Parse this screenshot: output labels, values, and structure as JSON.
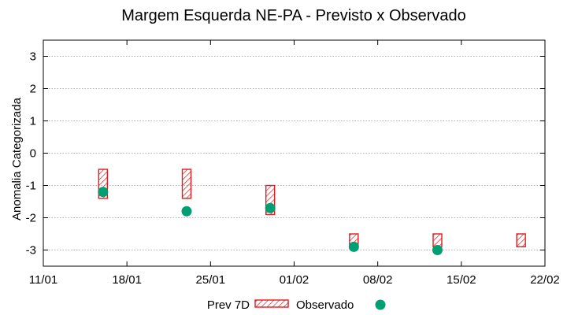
{
  "chart_data": {
    "type": "scatter",
    "title": "Margem Esquerda NE-PA - Previsto x Observado",
    "xlabel": "",
    "ylabel": "Anomalia Categorizada",
    "xlim": [
      "2021-01-11",
      "2021-02-22"
    ],
    "ylim": [
      -3.5,
      3.5
    ],
    "x_ticks": [
      "11/01",
      "18/01",
      "25/01",
      "01/02",
      "08/02",
      "15/02",
      "22/02"
    ],
    "y_ticks": [
      "3",
      "2",
      "1",
      "0",
      "-1",
      "-2",
      "-3"
    ],
    "y_tick_values": [
      3,
      2,
      1,
      0,
      -1,
      -2,
      -3
    ],
    "grid": true,
    "legend_position": "bottom",
    "colors": {
      "forecast": "#e41a1c",
      "observed": "#009e73",
      "grid": "#999999"
    },
    "series": [
      {
        "name": "Prev 7D",
        "kind": "range-box",
        "points": [
          {
            "x": "2021-01-16",
            "low": -1.4,
            "high": -0.5
          },
          {
            "x": "2021-01-23",
            "low": -1.4,
            "high": -0.5
          },
          {
            "x": "2021-01-30",
            "low": -1.9,
            "high": -1.0
          },
          {
            "x": "2021-02-06",
            "low": -2.9,
            "high": -2.5
          },
          {
            "x": "2021-02-13",
            "low": -2.9,
            "high": -2.5
          },
          {
            "x": "2021-02-20",
            "low": -2.9,
            "high": -2.5
          }
        ]
      },
      {
        "name": "Observado",
        "kind": "points",
        "points": [
          {
            "x": "2021-01-16",
            "y": -1.2
          },
          {
            "x": "2021-01-23",
            "y": -1.8
          },
          {
            "x": "2021-01-30",
            "y": -1.7
          },
          {
            "x": "2021-02-06",
            "y": -2.9
          },
          {
            "x": "2021-02-13",
            "y": -3.0
          }
        ]
      }
    ]
  }
}
